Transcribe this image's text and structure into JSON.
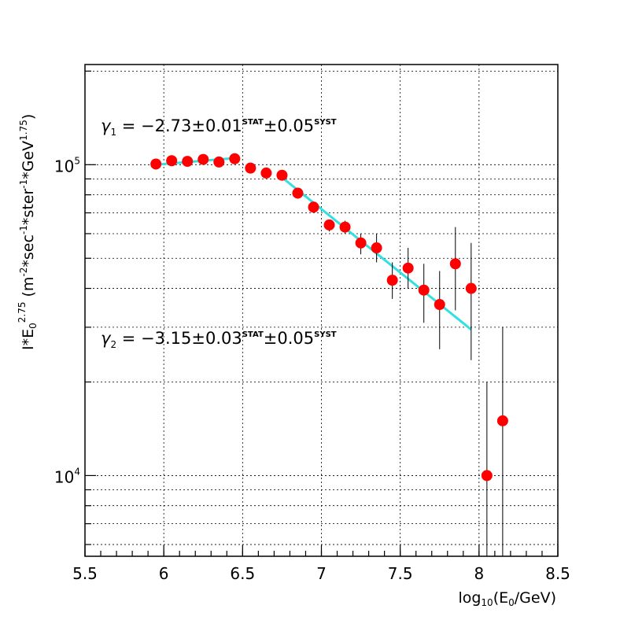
{
  "chart_data": {
    "type": "scatter",
    "xlim": [
      5.5,
      8.5
    ],
    "ylim": [
      5500,
      210000
    ],
    "yscale": "log",
    "grid": true,
    "x_ticks": [
      "5.5",
      "6",
      "6.5",
      "7",
      "7.5",
      "8",
      "8.5"
    ],
    "y_ticks": [
      {
        "base": "10",
        "exp": "5",
        "value": 100000
      },
      {
        "base": "10",
        "exp": "4",
        "value": 10000
      }
    ],
    "xlabel": {
      "pre": "log",
      "sub": "10",
      "mid": "(E",
      "sub2": "0",
      "post": "/GeV)"
    },
    "ylabel": {
      "t1": "I*E",
      "sub": "0",
      "sup": "2.75",
      "t2": " (m",
      "sup2": "-2",
      "t3": "*sec",
      "sup3": "-1",
      "t4": "*ster",
      "sup4": "-1",
      "t5": "*GeV",
      "sup5": "1.75",
      "t6": ")"
    },
    "series": [
      {
        "marker_color": "#ff0000",
        "points": [
          {
            "x": 5.95,
            "y": 100500,
            "lo": 100500,
            "hi": 100500
          },
          {
            "x": 6.05,
            "y": 103000,
            "lo": 103000,
            "hi": 103000
          },
          {
            "x": 6.15,
            "y": 102500,
            "lo": 102500,
            "hi": 102500
          },
          {
            "x": 6.25,
            "y": 104000,
            "lo": 104000,
            "hi": 104000
          },
          {
            "x": 6.35,
            "y": 102000,
            "lo": 102000,
            "hi": 102000
          },
          {
            "x": 6.45,
            "y": 104500,
            "lo": 104500,
            "hi": 104500
          },
          {
            "x": 6.55,
            "y": 97500,
            "lo": 97500,
            "hi": 97500
          },
          {
            "x": 6.65,
            "y": 94000,
            "lo": 94000,
            "hi": 94000
          },
          {
            "x": 6.75,
            "y": 92500,
            "lo": 92500,
            "hi": 92500
          },
          {
            "x": 6.85,
            "y": 81000,
            "lo": 81000,
            "hi": 81000
          },
          {
            "x": 6.95,
            "y": 73000,
            "lo": 73000,
            "hi": 73000
          },
          {
            "x": 7.05,
            "y": 64000,
            "lo": 61000,
            "hi": 66500
          },
          {
            "x": 7.15,
            "y": 63000,
            "lo": 60000,
            "hi": 66000
          },
          {
            "x": 7.25,
            "y": 56000,
            "lo": 51500,
            "hi": 60000
          },
          {
            "x": 7.35,
            "y": 54000,
            "lo": 48500,
            "hi": 60000
          },
          {
            "x": 7.45,
            "y": 42500,
            "lo": 37000,
            "hi": 48500
          },
          {
            "x": 7.55,
            "y": 46500,
            "lo": 40000,
            "hi": 54000
          },
          {
            "x": 7.65,
            "y": 39500,
            "lo": 31000,
            "hi": 48000
          },
          {
            "x": 7.75,
            "y": 35500,
            "lo": 25500,
            "hi": 45500
          },
          {
            "x": 7.85,
            "y": 48000,
            "lo": 34000,
            "hi": 63000
          },
          {
            "x": 7.95,
            "y": 40000,
            "lo": 23500,
            "hi": 56000
          },
          {
            "x": 8.05,
            "y": 10000,
            "lo": 5500,
            "hi": 20000
          },
          {
            "x": 8.15,
            "y": 15000,
            "lo": 5500,
            "hi": 30000
          }
        ]
      }
    ],
    "fits": [
      {
        "color": "#33e0e0",
        "x": [
          5.95,
          6.45
        ],
        "y": [
          100000,
          105000
        ]
      },
      {
        "color": "#33e0e0",
        "x": [
          6.75,
          7.95
        ],
        "y": [
          91000,
          29500
        ]
      }
    ],
    "annotations": [
      {
        "sym": "γ",
        "idx": "1",
        "eq": " = −2.73±0.01",
        "s1": "STAT",
        "mid": "±0.05",
        "s2": "SYST"
      },
      {
        "sym": "γ",
        "idx": "2",
        "eq": " = −3.15±0.03",
        "s1": "STAT",
        "mid": "±0.05",
        "s2": "SYST"
      }
    ]
  }
}
